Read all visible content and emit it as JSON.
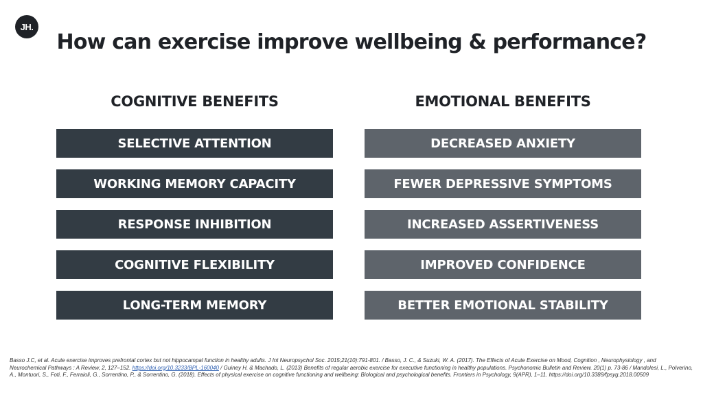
{
  "logo": {
    "text": "JH."
  },
  "title": "How can exercise improve wellbeing & performance?",
  "cognitive": {
    "heading": "COGNITIVE BENEFITS",
    "items": [
      "SELECTIVE ATTENTION",
      "WORKING MEMORY CAPACITY",
      "RESPONSE INHIBITION",
      "COGNITIVE FLEXIBILITY",
      "LONG-TERM MEMORY"
    ]
  },
  "emotional": {
    "heading": "EMOTIONAL BENEFITS",
    "items": [
      "DECREASED ANXIETY",
      "FEWER DEPRESSIVE SYMPTOMS",
      "INCREASED ASSERTIVENESS",
      "IMPROVED CONFIDENCE",
      "BETTER EMOTIONAL STABILITY"
    ]
  },
  "references": {
    "part1": "Basso J.C, et al. Acute exercise improves prefrontal cortex but not hippocampal function in healthy adults. J Int Neuropsychol Soc. 2015;21(10):791-801. / Basso, J. C., & Suzuki, W. A. (2017). The Effects of Acute Exercise on Mood, Cognition , Neurophysiology , and Neurochemical Pathways : A Review, 2, 127–152. ",
    "link": "https://doi.org/10.3233/BPL-160040",
    "part2": " / Guiney H. & Machado, L. (2013) Benefits of regular aerobic exercise for executive functioning in healthy populations. Psychonomic Bulletin and Review. 20(1) p. 73-86 / Mandolesi, L., Polverino, A., Montuori, S., Foti, F., Ferraioli, G., Sorrentino, P., & Sorrentino, G. (2018). Effects of physical exercise on cognitive functioning and wellbeing: Biological and psychological benefits. Frontiers in Psychology, 9(APR), 1–11. https://doi.org/10.3389/fpsyg.2018.00509"
  },
  "colors": {
    "cognitive_box": "#333c44",
    "emotional_box": "#5e646b",
    "text_dark": "#1f2227"
  }
}
